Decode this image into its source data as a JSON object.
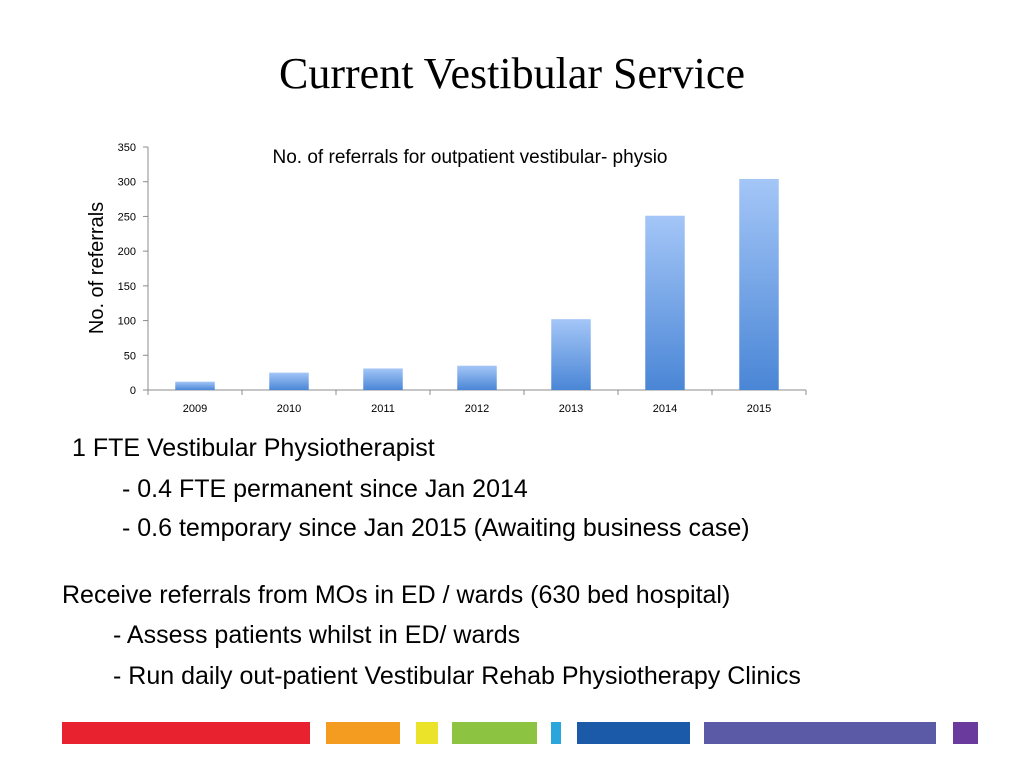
{
  "slide": {
    "title": "Current Vestibular Service"
  },
  "chart_data": {
    "type": "bar",
    "title": "No. of referrals for outpatient vestibular- physio",
    "xlabel": "",
    "ylabel": "No. of referrals",
    "categories": [
      "2009",
      "2010",
      "2011",
      "2012",
      "2013",
      "2014",
      "2015"
    ],
    "values": [
      12,
      25,
      31,
      35,
      102,
      251,
      304
    ],
    "ylim": [
      0,
      350
    ],
    "yticks": [
      0,
      50,
      100,
      150,
      200,
      250,
      300,
      350
    ],
    "grid": false,
    "bar_color_top": "#a4c6f7",
    "bar_color_bottom": "#4a86d6"
  },
  "staffing": {
    "heading": "1 FTE Vestibular Physiotherapist",
    "items": [
      "- 0.4 FTE permanent since Jan 2014",
      "- 0.6 temporary since Jan 2015 (Awaiting business case)"
    ]
  },
  "referrals": {
    "heading": "Receive referrals from MOs in ED / wards (630 bed hospital)",
    "items": [
      "- Assess patients whilst in ED/ wards",
      "- Run daily out-patient Vestibular Rehab Physiotherapy Clinics"
    ]
  },
  "footer_colors": [
    "#e8232f",
    "#f39c1f",
    "#ebe22a",
    "#8cc442",
    "#2aa6dd",
    "#1a5aa8",
    "#5a5aa6",
    "#6a3a9c"
  ]
}
